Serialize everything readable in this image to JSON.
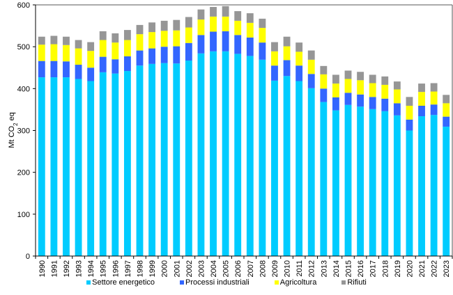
{
  "chart_data": {
    "type": "bar",
    "stacked": true,
    "title": "",
    "xlabel": "",
    "ylabel": "Mt CO2 eq",
    "ylabel_parts": {
      "prefix": "Mt CO",
      "subscript": "2",
      "suffix": " eq"
    },
    "ylim": [
      0,
      600
    ],
    "yticks": [
      0,
      100,
      200,
      300,
      400,
      500,
      600
    ],
    "grid": false,
    "legend_position": "bottom",
    "categories": [
      "1990",
      "1991",
      "1992",
      "1993",
      "1994",
      "1995",
      "1996",
      "1997",
      "1998",
      "1999",
      "2000",
      "2001",
      "2002",
      "2003",
      "2004",
      "2005",
      "2006",
      "2007",
      "2008",
      "2009",
      "2010",
      "2011",
      "2012",
      "2013",
      "2014",
      "2015",
      "2016",
      "2017",
      "2018",
      "2019",
      "2020",
      "2021",
      "2022",
      "2023"
    ],
    "series": [
      {
        "name": "Settore energetico",
        "color": "#00CCFF",
        "values": [
          427,
          427,
          427,
          423,
          418,
          439,
          436,
          442,
          455,
          459,
          461,
          460,
          467,
          484,
          489,
          489,
          483,
          478,
          469,
          419,
          430,
          418,
          401,
          368,
          348,
          361,
          357,
          351,
          346,
          336,
          300,
          334,
          337,
          309
        ]
      },
      {
        "name": "Processi industriali",
        "color": "#3366FF",
        "values": [
          39,
          39,
          38,
          34,
          32,
          37,
          34,
          35,
          36,
          37,
          39,
          41,
          42,
          44,
          47,
          48,
          45,
          44,
          41,
          36,
          38,
          37,
          34,
          32,
          31,
          29,
          29,
          29,
          30,
          29,
          26,
          25,
          25,
          24
        ]
      },
      {
        "name": "Agricoltura",
        "color": "#FFFF00",
        "values": [
          39,
          40,
          39,
          39,
          40,
          40,
          40,
          39,
          39,
          39,
          38,
          38,
          37,
          37,
          36,
          35,
          34,
          35,
          35,
          34,
          33,
          33,
          34,
          34,
          33,
          33,
          34,
          33,
          33,
          33,
          33,
          33,
          31,
          32
        ]
      },
      {
        "name": "Rifiuti",
        "color": "#969696",
        "values": [
          19,
          20,
          20,
          20,
          21,
          21,
          22,
          24,
          22,
          23,
          24,
          25,
          25,
          24,
          23,
          25,
          23,
          23,
          22,
          22,
          23,
          22,
          22,
          20,
          21,
          20,
          20,
          20,
          20,
          19,
          21,
          20,
          20,
          20
        ]
      }
    ]
  }
}
